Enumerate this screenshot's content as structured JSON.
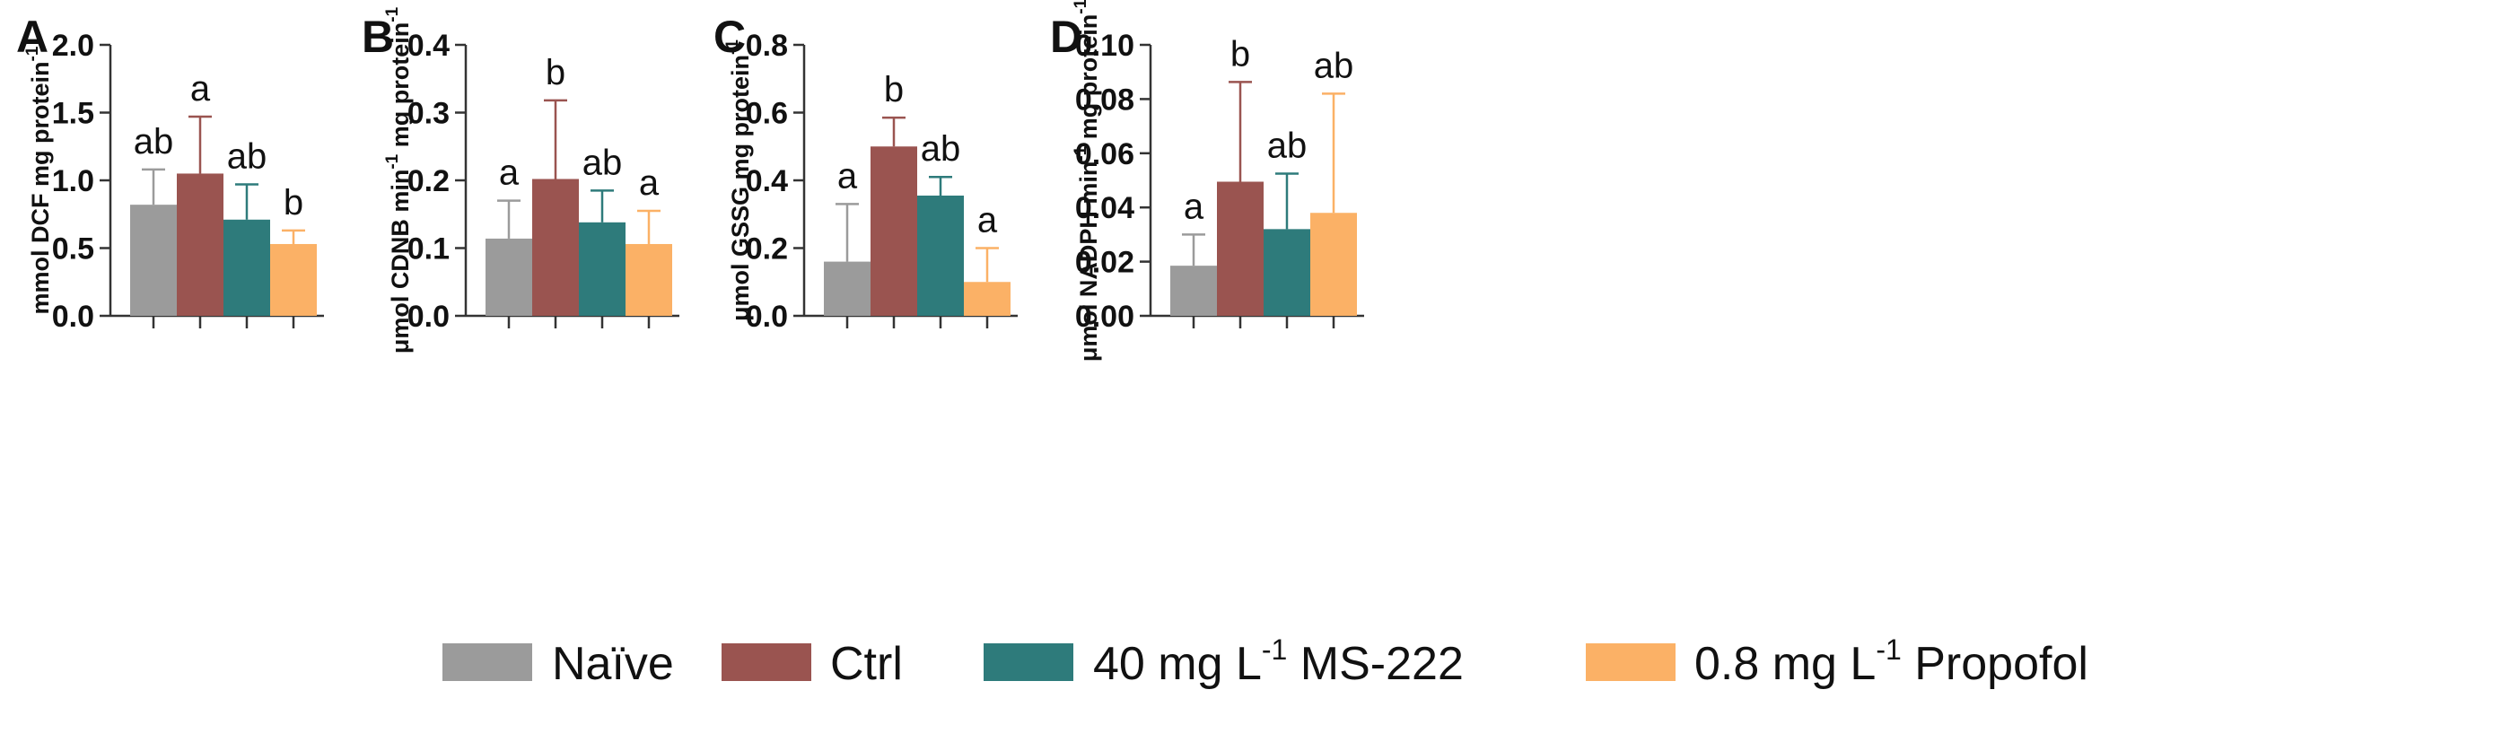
{
  "chart_data": [
    {
      "type": "bar",
      "panel": "A",
      "ylabel": "mmol DCF mg protein",
      "ylabel_sup": "-1",
      "ylim": [
        0,
        2.0
      ],
      "yticks": [
        "0.0",
        "0.5",
        "1.0",
        "1.5",
        "2.0"
      ],
      "tick_values": [
        0,
        0.5,
        1.0,
        1.5,
        2.0
      ],
      "categories": [
        "Naïve",
        "Ctrl",
        "40 mg L-1 MS-222",
        "0.8 mg L-1 Propofol"
      ],
      "values": [
        0.82,
        1.05,
        0.71,
        0.53
      ],
      "errors": [
        0.26,
        0.42,
        0.26,
        0.1
      ],
      "letters": [
        "ab",
        "a",
        "ab",
        "b"
      ]
    },
    {
      "type": "bar",
      "panel": "B",
      "ylabel": "μmol CDNB min",
      "ylabel_sup": "-1",
      "ylabel_mid": " mg protein",
      "ylabel_sup2": "-1",
      "ylim": [
        0,
        0.4
      ],
      "yticks": [
        "0.0",
        "0.1",
        "0.2",
        "0.3",
        "0.4"
      ],
      "tick_values": [
        0,
        0.1,
        0.2,
        0.3,
        0.4
      ],
      "categories": [
        "Naïve",
        "Ctrl",
        "40 mg L-1 MS-222",
        "0.8 mg L-1 Propofol"
      ],
      "values": [
        0.114,
        0.202,
        0.138,
        0.106
      ],
      "errors": [
        0.056,
        0.116,
        0.047,
        0.049
      ],
      "letters": [
        "a",
        "b",
        "ab",
        "a"
      ]
    },
    {
      "type": "bar",
      "panel": "C",
      "ylabel": "μmol GSSG mg protein",
      "ylabel_sup": "-1",
      "ylim": [
        0,
        0.8
      ],
      "yticks": [
        "0.0",
        "0.2",
        "0.4",
        "0.6",
        "0.8"
      ],
      "tick_values": [
        0,
        0.2,
        0.4,
        0.6,
        0.8
      ],
      "categories": [
        "Naïve",
        "Ctrl",
        "40 mg L-1 MS-222",
        "0.8 mg L-1 Propofol"
      ],
      "values": [
        0.16,
        0.5,
        0.355,
        0.1
      ],
      "errors": [
        0.17,
        0.085,
        0.055,
        0.1
      ],
      "letters": [
        "a",
        "b",
        "ab",
        "a"
      ]
    },
    {
      "type": "bar",
      "panel": "D",
      "ylabel": "μmol NADPH min",
      "ylabel_sup": "-1",
      "ylabel_mid": " mg protein",
      "ylabel_sup2": "-1",
      "ylim": [
        0,
        0.1
      ],
      "yticks": [
        "0.00",
        "0.02",
        "0.04",
        "0.06",
        "0.08",
        "0.10"
      ],
      "tick_values": [
        0,
        0.02,
        0.04,
        0.06,
        0.08,
        0.1
      ],
      "categories": [
        "Naïve",
        "Ctrl",
        "40 mg L-1 MS-222",
        "0.8 mg L-1 Propofol"
      ],
      "values": [
        0.0185,
        0.0495,
        0.032,
        0.038
      ],
      "errors": [
        0.0115,
        0.0368,
        0.0205,
        0.044
      ],
      "letters": [
        "a",
        "b",
        "ab",
        "ab"
      ]
    }
  ],
  "colors": {
    "naive": "#9b9b9b",
    "ctrl": "#9a5450",
    "ms222": "#2e7b7b",
    "propofol": "#fbb166",
    "axis": "#333333"
  },
  "legend": [
    {
      "label": "Naïve",
      "color_key": "naive"
    },
    {
      "label": "Ctrl",
      "color_key": "ctrl"
    },
    {
      "label": "40 mg  L",
      "sup": "-1",
      "label_after": " MS-222",
      "color_key": "ms222"
    },
    {
      "label": "0.8 mg L",
      "sup": "-1",
      "label_after": "  Propofol",
      "color_key": "propofol"
    }
  ]
}
